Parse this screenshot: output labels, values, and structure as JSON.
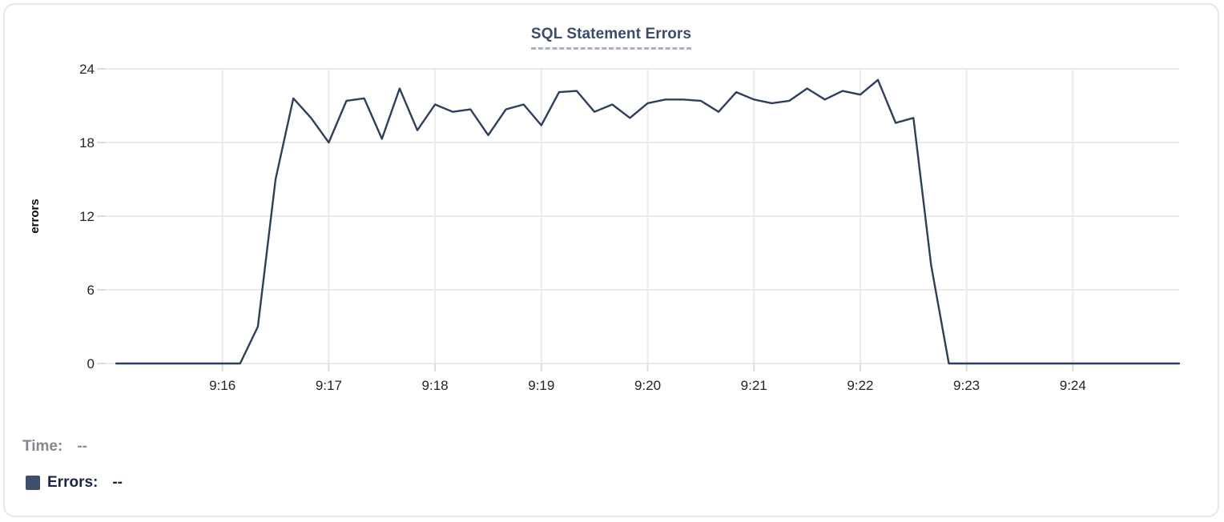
{
  "chart": {
    "title": "SQL Statement Errors"
  },
  "readout": {
    "time_label": "Time:",
    "time_value": "--",
    "errors_label": "Errors:",
    "errors_value": "--"
  },
  "colors": {
    "series": "#2e3f5d",
    "swatch": "#3e4d69",
    "title": "#3c4c6b",
    "title_underline": "#a8b2c6",
    "gridline": "#ebebee",
    "tick": "#dcdce0",
    "axis_text": "#222529",
    "card_border": "#e7e7ea"
  },
  "chart_data": {
    "type": "line",
    "title": "SQL Statement Errors",
    "xlabel": "",
    "ylabel": "errors",
    "ylim": [
      0,
      24
    ],
    "y_ticks": [
      0,
      6,
      12,
      18,
      24
    ],
    "grid": true,
    "legend_position": "bottom-left",
    "x_start_time": "9:15:00",
    "x_end_time": "9:25:00",
    "x_domain_seconds": 600,
    "sample_interval_seconds": 10,
    "x_ticks": [
      {
        "t": 60,
        "label": "9:16"
      },
      {
        "t": 120,
        "label": "9:17"
      },
      {
        "t": 180,
        "label": "9:18"
      },
      {
        "t": 240,
        "label": "9:19"
      },
      {
        "t": 300,
        "label": "9:20"
      },
      {
        "t": 360,
        "label": "9:21"
      },
      {
        "t": 420,
        "label": "9:22"
      },
      {
        "t": 480,
        "label": "9:23"
      },
      {
        "t": 540,
        "label": "9:24"
      }
    ],
    "series": [
      {
        "name": "Errors",
        "color": "#2e3f5d",
        "values": [
          0,
          0,
          0,
          0,
          0,
          0,
          0,
          0,
          3,
          15,
          21.6,
          20,
          18,
          21.4,
          21.6,
          18.3,
          22.4,
          19,
          21.1,
          20.5,
          20.7,
          18.6,
          20.7,
          21.1,
          19.4,
          22.1,
          22.2,
          20.5,
          21.1,
          20,
          21.2,
          21.5,
          21.5,
          21.4,
          20.5,
          22.1,
          21.5,
          21.2,
          21.4,
          22.4,
          21.5,
          22.2,
          21.9,
          23.1,
          19.6,
          20,
          8,
          0,
          0,
          0,
          0,
          0,
          0,
          0,
          0,
          0,
          0,
          0,
          0,
          0,
          0
        ]
      }
    ]
  }
}
